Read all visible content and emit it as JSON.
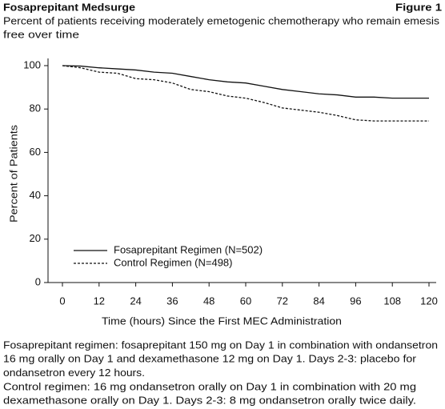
{
  "chart_data": {
    "type": "line",
    "title": "Fosaprepitant Medsurge",
    "figure_label": "Figure 1",
    "subtitle": [
      "Percent of patients receiving moderately emetogenic chemotherapy who remain emesis",
      "free over time"
    ],
    "x_label": "Time (hours) Since the First MEC Administration",
    "y_label": "Percent of Patients",
    "x": [
      0,
      6,
      12,
      18,
      24,
      30,
      36,
      42,
      48,
      54,
      60,
      66,
      72,
      78,
      84,
      90,
      96,
      102,
      108,
      114,
      120
    ],
    "series": [
      {
        "name": "Fosaprepitant Regimen (N=502)",
        "color": "#111111",
        "dash": "solid",
        "values": [
          100,
          99.8,
          99,
          98.5,
          98,
          97,
          96.5,
          95,
          93.5,
          92.5,
          92,
          90.5,
          89,
          88,
          87,
          86.5,
          85.5,
          85.5,
          85,
          85,
          85
        ]
      },
      {
        "name": "Control Regimen (N=498)",
        "color": "#111111",
        "dash": "dashed",
        "values": [
          100,
          99,
          97,
          96.5,
          94,
          93.5,
          92,
          89,
          88,
          86,
          85,
          83,
          80.5,
          79.5,
          78.5,
          77,
          75,
          74.5,
          74.5,
          74.5,
          74.5
        ]
      }
    ],
    "xlim": [
      0,
      120
    ],
    "xticks": [
      0,
      12,
      24,
      36,
      48,
      60,
      72,
      84,
      96,
      108,
      120
    ],
    "ylim": [
      0,
      100
    ],
    "yticks": [
      0,
      20,
      40,
      60,
      80,
      100
    ],
    "legend": "lower left",
    "footnote": [
      "Fosaprepitant regimen: fosaprepitant 150 mg on Day 1 in combination with ondansetron",
      "16 mg orally on Day 1 and dexamethasone 12 mg on Day 1. Days 2-3: placebo for",
      "ondansetron every 12 hours.",
      "Control regimen: 16 mg ondansetron orally on Day 1 in combination with 20 mg",
      "dexamethasone orally on Day 1. Days 2-3: 8 mg ondansetron orally twice daily."
    ]
  }
}
